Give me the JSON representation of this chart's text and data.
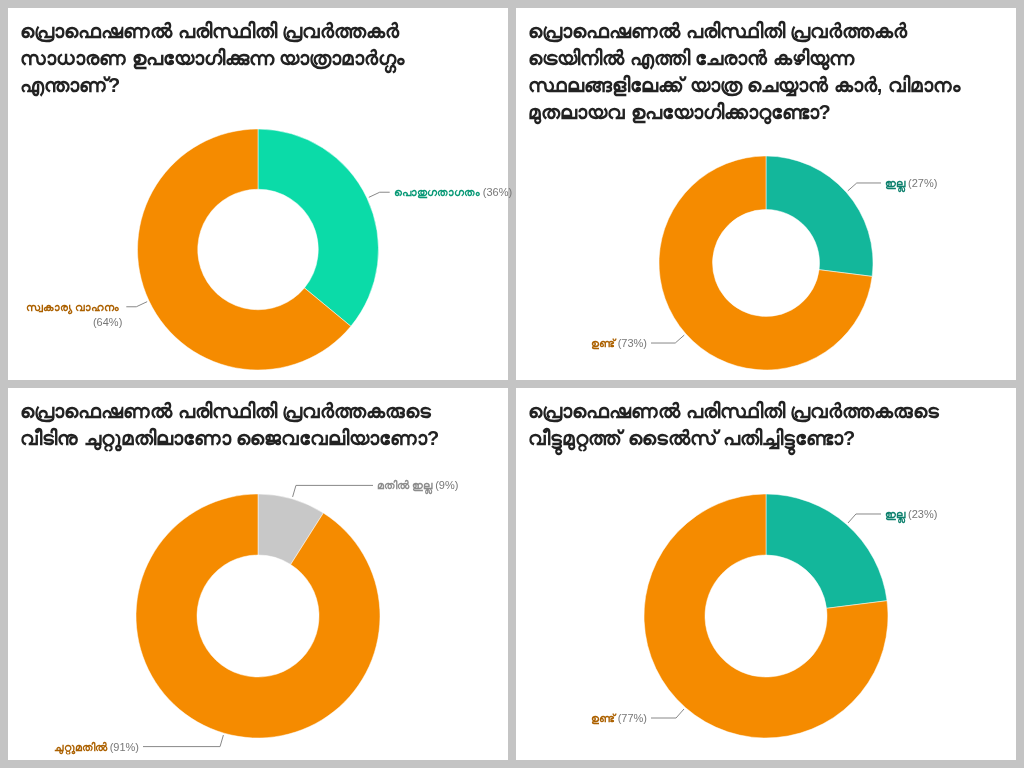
{
  "chart_data": [
    {
      "type": "donut",
      "title": "പ്രൊഫെഷണൽ പരിസ്ഥിതി പ്രവർത്തകർ സാധാരണ ഉപയോഗിക്കുന്ന യാത്രാമാർഗ്ഗം എന്താണ്?",
      "categories": [
        "പൊതുഗതാഗതം",
        "സ്വകാര്യ വാഹനം"
      ],
      "values": [
        36,
        64
      ],
      "colors": [
        "#0bdba8",
        "#f58b00"
      ],
      "value_labels": [
        "(36%)",
        "(64%)"
      ]
    },
    {
      "type": "donut",
      "title": "പ്രൊഫെഷണൽ പരിസ്ഥിതി പ്രവർത്തകർ ട്രെയിനിൽ എത്തി ചേരാൻ കഴിയുന്ന സ്ഥലങ്ങളിലേക്ക് യാത്ര ചെയ്യാൻ കാർ, വിമാനം മുതലായവ ഉപയോഗിക്കാറുണ്ടോ?",
      "categories": [
        "ഇല്ല",
        "ഉണ്ട്"
      ],
      "values": [
        27,
        73
      ],
      "colors": [
        "#13b79b",
        "#f58b00"
      ],
      "value_labels": [
        "(27%)",
        "(73%)"
      ]
    },
    {
      "type": "donut",
      "title": "പ്രൊഫെഷണൽ പരിസ്ഥിതി പ്രവർത്തകരുടെ വീടിനു ചുറ്റുമതിലാണോ ജൈവവേലിയാണോ?",
      "categories": [
        "മതിൽ ഇല്ല",
        "ചുറ്റുമതിൽ"
      ],
      "values": [
        9,
        91
      ],
      "colors": [
        "#c8c8c8",
        "#f58b00"
      ],
      "value_labels": [
        "(9%)",
        "(91%)"
      ]
    },
    {
      "type": "donut",
      "title": "പ്രൊഫെഷണൽ പരിസ്ഥിതി പ്രവർത്തകരുടെ വീട്ടുമുറ്റത്ത് ടൈൽസ് പതിച്ചിട്ടുണ്ടോ?",
      "categories": [
        "ഇല്ല",
        "ഉണ്ട്"
      ],
      "values": [
        23,
        77
      ],
      "colors": [
        "#13b79b",
        "#f58b00"
      ],
      "value_labels": [
        "(23%)",
        "(77%)"
      ]
    }
  ]
}
